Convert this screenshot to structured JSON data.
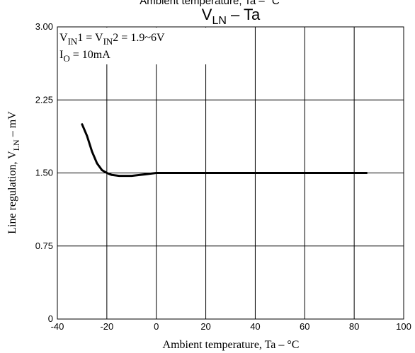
{
  "chart_data": {
    "type": "line",
    "title_top_clipped": "Ambient temperature, Ta – °C",
    "title": {
      "main": "V",
      "main_sub": "LN",
      "main_rest": " – Ta"
    },
    "xlabel": "Ambient temperature, Ta – °C",
    "ylabel": {
      "prefix": "Line regulation, V",
      "sub": "LN",
      "suffix": " – mV"
    },
    "xlim": [
      -40,
      100
    ],
    "ylim": [
      0,
      3
    ],
    "x_ticks": [
      "-40",
      "-20",
      "0",
      "20",
      "40",
      "60",
      "80",
      "100"
    ],
    "y_ticks": [
      "0",
      "0.75",
      "1.50",
      "2.25",
      "3.00"
    ],
    "grid": true,
    "annotations": [
      {
        "parts": [
          {
            "t": "V"
          },
          {
            "t": "IN",
            "sub": true
          },
          {
            "t": "1 = V"
          },
          {
            "t": "IN",
            "sub": true
          },
          {
            "t": "2 = 1.9~6V"
          }
        ]
      },
      {
        "parts": [
          {
            "t": "I"
          },
          {
            "t": "O",
            "sub": true
          },
          {
            "t": " = 10mA"
          }
        ]
      }
    ],
    "series": [
      {
        "x": [
          -30,
          -28,
          -26,
          -24,
          -22,
          -20,
          -18,
          -15,
          -10,
          -5,
          0,
          10,
          20,
          40,
          60,
          80,
          85
        ],
        "y": [
          2.0,
          1.88,
          1.72,
          1.6,
          1.53,
          1.5,
          1.48,
          1.47,
          1.47,
          1.485,
          1.5,
          1.5,
          1.5,
          1.5,
          1.5,
          1.5,
          1.5
        ]
      }
    ],
    "colors": {
      "line": "#000000",
      "grid": "#000000",
      "background": "#ffffff"
    }
  }
}
